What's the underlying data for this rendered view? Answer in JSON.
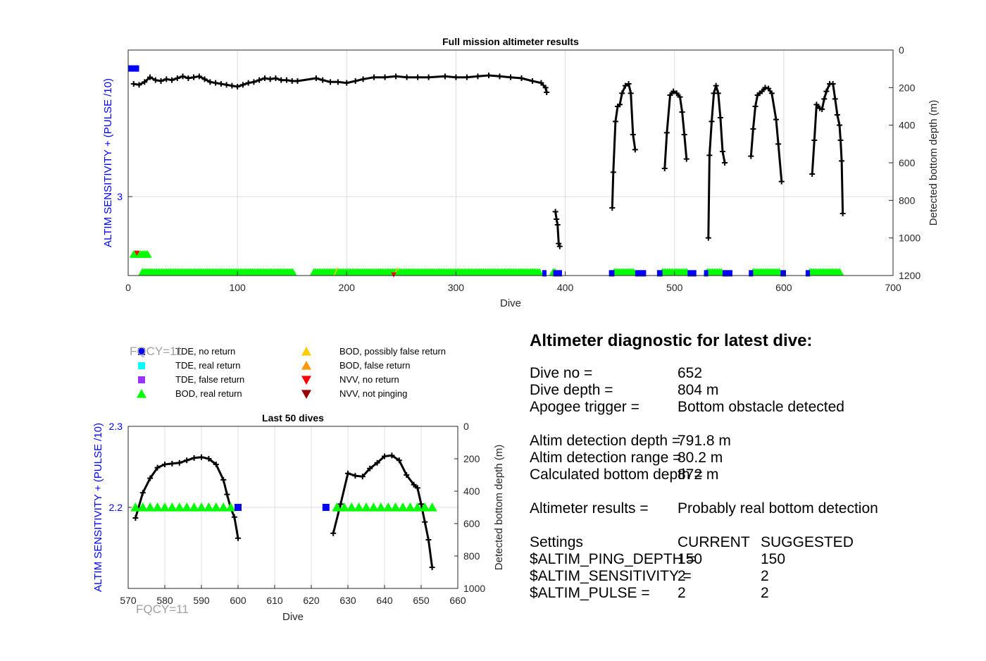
{
  "figure": {
    "fqcy_top": "FQCY=11",
    "fqcy_bottom": "FQCY=11"
  },
  "legend": [
    {
      "label": "TDE, no return",
      "marker": "square",
      "color": "#0000ff"
    },
    {
      "label": "TDE, real return",
      "marker": "square",
      "color": "#00ffff"
    },
    {
      "label": "TDE, false return",
      "marker": "square",
      "color": "#9933ff"
    },
    {
      "label": "BOD, real return",
      "marker": "triangle-up",
      "color": "#00ff00"
    },
    {
      "label": "BOD, possibly false return",
      "marker": "triangle-up",
      "color": "#ffcc00"
    },
    {
      "label": "BOD, false return",
      "marker": "triangle-up",
      "color": "#ff9900"
    },
    {
      "label": "NVV, no return",
      "marker": "triangle-down",
      "color": "#ff0000"
    },
    {
      "label": "NVV, not pinging",
      "marker": "triangle-down",
      "color": "#990000"
    }
  ],
  "diagnostic": {
    "title": "Altimeter diagnostic for latest dive:",
    "rows": [
      {
        "key": "Dive no =",
        "value": "652"
      },
      {
        "key": "Dive depth =",
        "value": "804 m"
      },
      {
        "key": "Apogee trigger =",
        "value": "Bottom obstacle detected"
      }
    ],
    "rows2": [
      {
        "key": "Altim detection depth =",
        "value": "791.8 m"
      },
      {
        "key": "Altim detection range =",
        "value": "80.2 m"
      },
      {
        "key": "Calculated bottom depth =",
        "value": "872 m"
      }
    ],
    "results_key": "Altimeter results =",
    "results_value": "Probably real bottom detection",
    "settings_header": {
      "key": "Settings",
      "current": "CURRENT",
      "suggested": "SUGGESTED"
    },
    "settings": [
      {
        "key": "$ALTIM_PING_DEPTH =",
        "current": "150",
        "suggested": "150"
      },
      {
        "key": "$ALTIM_SENSITIVITY =",
        "current": "2",
        "suggested": "2"
      },
      {
        "key": "$ALTIM_PULSE =",
        "current": "2",
        "suggested": "2"
      }
    ]
  },
  "chart_data": [
    {
      "type": "line",
      "title": "Full mission altimeter results",
      "xlabel": "Dive",
      "ylabel_left": "ALTIM SENSITIVITY + (PULSE /10)",
      "ylabel_right": "Detected bottom depth (m)",
      "xlim": [
        0,
        700
      ],
      "xticks": [
        0,
        100,
        200,
        300,
        400,
        500,
        600,
        700
      ],
      "ylim_right": [
        0,
        1200
      ],
      "yticks_right": [
        0,
        200,
        400,
        600,
        800,
        1000,
        1200
      ],
      "ylim_left": [
        2.3,
        4.3
      ],
      "yticks_left": [
        3
      ],
      "grid": true,
      "bottom_depth": [
        [
          [
            5,
            180
          ],
          [
            10,
            185
          ],
          [
            15,
            170
          ],
          [
            20,
            145
          ],
          [
            25,
            160
          ],
          [
            30,
            165
          ],
          [
            35,
            155
          ],
          [
            40,
            160
          ],
          [
            45,
            150
          ],
          [
            50,
            140
          ],
          [
            55,
            150
          ],
          [
            60,
            145
          ],
          [
            65,
            140
          ],
          [
            70,
            155
          ],
          [
            75,
            170
          ],
          [
            80,
            175
          ],
          [
            85,
            180
          ],
          [
            90,
            185
          ],
          [
            95,
            190
          ],
          [
            100,
            195
          ],
          [
            105,
            185
          ],
          [
            110,
            175
          ],
          [
            115,
            170
          ],
          [
            120,
            160
          ],
          [
            125,
            150
          ],
          [
            130,
            155
          ],
          [
            135,
            150
          ],
          [
            140,
            160
          ],
          [
            145,
            160
          ],
          [
            150,
            165
          ],
          [
            155,
            165
          ],
          [
            172,
            150
          ],
          [
            178,
            160
          ],
          [
            185,
            170
          ],
          [
            192,
            170
          ],
          [
            200,
            175
          ],
          [
            208,
            165
          ],
          [
            215,
            155
          ],
          [
            225,
            145
          ],
          [
            235,
            145
          ],
          [
            245,
            140
          ],
          [
            255,
            145
          ],
          [
            265,
            145
          ],
          [
            275,
            145
          ],
          [
            290,
            140
          ],
          [
            300,
            145
          ],
          [
            310,
            145
          ],
          [
            320,
            140
          ],
          [
            330,
            135
          ],
          [
            340,
            140
          ],
          [
            350,
            145
          ],
          [
            360,
            150
          ],
          [
            370,
            165
          ],
          [
            378,
            175
          ],
          [
            382,
            200
          ],
          [
            383,
            225
          ]
        ],
        [
          [
            391,
            860
          ],
          [
            392,
            900
          ],
          [
            393,
            930
          ],
          [
            394,
            1030
          ],
          [
            395,
            1045
          ]
        ],
        [
          [
            443,
            840
          ],
          [
            444,
            650
          ],
          [
            446,
            380
          ],
          [
            448,
            300
          ],
          [
            450,
            290
          ],
          [
            452,
            230
          ],
          [
            455,
            190
          ],
          [
            458,
            180
          ],
          [
            460,
            230
          ],
          [
            462,
            450
          ],
          [
            464,
            530
          ]
        ],
        [
          [
            491,
            630
          ],
          [
            493,
            440
          ],
          [
            496,
            240
          ],
          [
            499,
            220
          ],
          [
            502,
            230
          ],
          [
            505,
            250
          ],
          [
            507,
            330
          ],
          [
            509,
            450
          ],
          [
            511,
            580
          ]
        ],
        [
          [
            531,
            1000
          ],
          [
            532,
            560
          ],
          [
            534,
            380
          ],
          [
            536,
            230
          ],
          [
            538,
            190
          ],
          [
            540,
            230
          ],
          [
            542,
            360
          ],
          [
            544,
            540
          ],
          [
            546,
            600
          ]
        ],
        [
          [
            570,
            565
          ],
          [
            572,
            420
          ],
          [
            574,
            300
          ],
          [
            576,
            240
          ],
          [
            578,
            230
          ],
          [
            580,
            220
          ],
          [
            583,
            200
          ],
          [
            586,
            205
          ],
          [
            589,
            230
          ],
          [
            593,
            370
          ],
          [
            595,
            500
          ],
          [
            598,
            700
          ]
        ],
        [
          [
            626,
            660
          ],
          [
            628,
            480
          ],
          [
            630,
            290
          ],
          [
            633,
            310
          ],
          [
            635,
            315
          ],
          [
            637,
            260
          ],
          [
            639,
            220
          ],
          [
            642,
            180
          ],
          [
            645,
            180
          ],
          [
            647,
            260
          ],
          [
            649,
            345
          ],
          [
            651,
            400
          ],
          [
            652,
            480
          ],
          [
            653,
            590
          ],
          [
            654,
            870
          ]
        ]
      ],
      "tde_no_return_bars": [
        [
          0,
          10,
          100
        ],
        [
          379,
          382,
          1190
        ],
        [
          389,
          397,
          1190
        ],
        [
          440,
          445,
          1190
        ],
        [
          464,
          474,
          1190
        ],
        [
          484,
          489,
          1190
        ],
        [
          512,
          520,
          1190
        ],
        [
          527,
          530,
          1190
        ],
        [
          544,
          553,
          1190
        ],
        [
          568,
          572,
          1190
        ],
        [
          597,
          602,
          1190
        ],
        [
          620,
          624,
          1190
        ]
      ],
      "bod_real_ranges": [
        [
          13,
          152,
          1190
        ],
        [
          170,
          378,
          1190
        ],
        [
          389,
          392,
          1190
        ],
        [
          445,
          464,
          1190
        ],
        [
          489,
          512,
          1190
        ],
        [
          530,
          544,
          1190
        ],
        [
          572,
          597,
          1190
        ],
        [
          624,
          652,
          1190
        ],
        [
          5,
          18,
          1095
        ]
      ],
      "nvv_no_return": [
        [
          8,
          1080
        ],
        [
          243,
          1195
        ]
      ],
      "bod_false_markers": [
        [
          190,
          1180
        ],
        [
          245,
          1180
        ]
      ]
    },
    {
      "type": "line",
      "title": "Last 50 dives",
      "xlabel": "Dive",
      "ylabel_left": "ALTIM SENSITIVITY + (PULSE /10)",
      "ylabel_right": "Detected bottom depth (m)",
      "xlim": [
        570,
        660
      ],
      "xticks": [
        570,
        580,
        590,
        600,
        610,
        620,
        630,
        640,
        650,
        660
      ],
      "ylim_right": [
        0,
        1000
      ],
      "yticks_right": [
        0,
        200,
        400,
        600,
        800,
        1000
      ],
      "ylim_left": [
        2.1,
        2.3
      ],
      "yticks_left": [
        2.2,
        2.3
      ],
      "grid": true,
      "bottom_depth": [
        [
          [
            572,
            565
          ],
          [
            574,
            410
          ],
          [
            576,
            320
          ],
          [
            578,
            255
          ],
          [
            580,
            235
          ],
          [
            582,
            230
          ],
          [
            584,
            225
          ],
          [
            586,
            210
          ],
          [
            588,
            195
          ],
          [
            590,
            190
          ],
          [
            592,
            200
          ],
          [
            594,
            235
          ],
          [
            596,
            330
          ],
          [
            597,
            420
          ],
          [
            598,
            505
          ],
          [
            599,
            560
          ],
          [
            600,
            690
          ]
        ],
        [
          [
            626,
            660
          ],
          [
            628,
            480
          ],
          [
            630,
            290
          ],
          [
            632,
            305
          ],
          [
            634,
            310
          ],
          [
            636,
            260
          ],
          [
            638,
            225
          ],
          [
            640,
            185
          ],
          [
            642,
            180
          ],
          [
            644,
            210
          ],
          [
            646,
            300
          ],
          [
            648,
            360
          ],
          [
            649,
            380
          ],
          [
            650,
            480
          ],
          [
            651,
            590
          ],
          [
            652,
            700
          ],
          [
            653,
            870
          ]
        ]
      ],
      "bod_real": [
        572,
        574,
        576,
        578,
        580,
        582,
        584,
        586,
        588,
        590,
        592,
        594,
        596,
        598,
        627,
        629,
        631,
        633,
        635,
        637,
        639,
        641,
        643,
        645,
        647,
        649,
        651,
        653
      ],
      "tde_no_return": [
        600,
        624
      ],
      "marker_left_value": 2.2
    }
  ]
}
